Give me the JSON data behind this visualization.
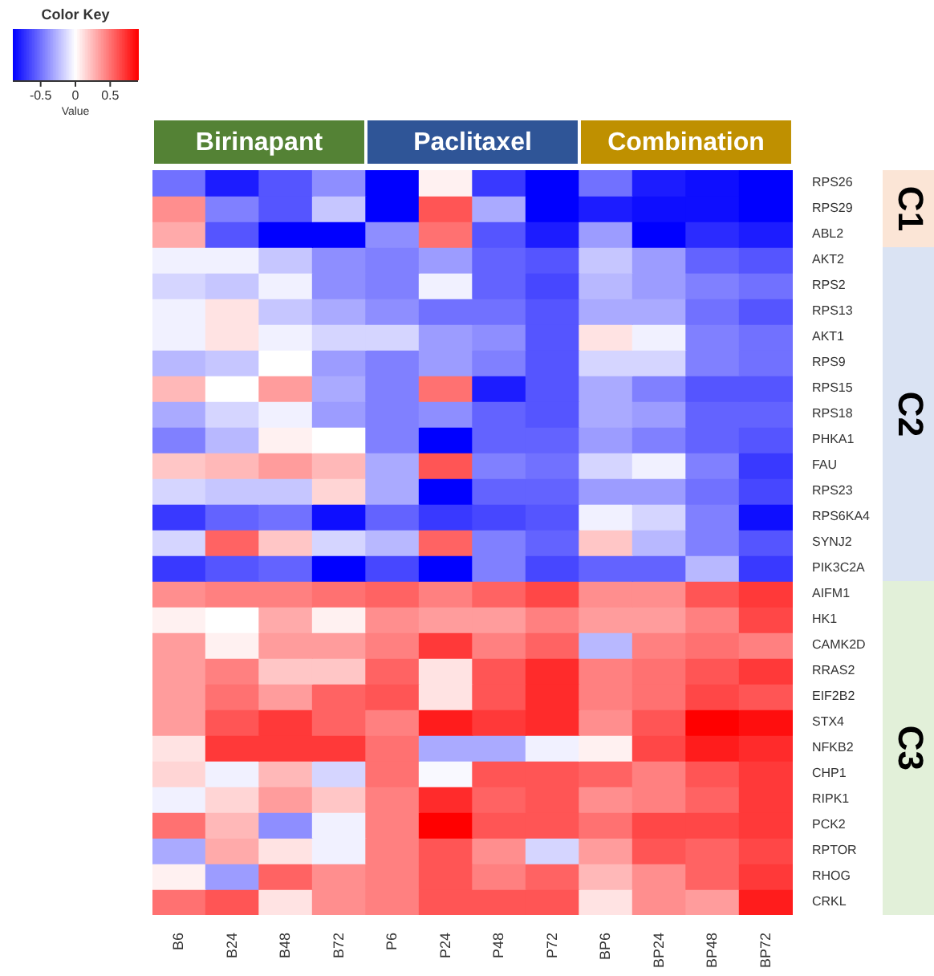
{
  "chart_data": {
    "type": "heatmap",
    "legend_title": "Color Key",
    "clabel": "Value",
    "clim": [
      -0.9,
      0.9
    ],
    "cticks": [
      -0.5,
      0,
      0.5
    ],
    "categories": [
      "B6",
      "B24",
      "B48",
      "B72",
      "P6",
      "P24",
      "P48",
      "P72",
      "BP6",
      "BP24",
      "BP48",
      "BP72"
    ],
    "y_categories": [
      "RPS26",
      "RPS29",
      "ABL2",
      "AKT2",
      "RPS2",
      "RPS13",
      "AKT1",
      "RPS9",
      "RPS15",
      "RPS18",
      "PHKA1",
      "FAU",
      "RPS23",
      "RPS6KA4",
      "SYNJ2",
      "PIK3C2A",
      "AIFM1",
      "HK1",
      "CAMK2D",
      "RRAS2",
      "EIF2B2",
      "STX4",
      "NFKB2",
      "CHP1",
      "RIPK1",
      "PCK2",
      "RPTOR",
      "RHOG",
      "CRKL"
    ],
    "cells": [
      [
        -0.5,
        -0.8,
        -0.6,
        -0.4,
        -0.9,
        0.05,
        -0.7,
        -0.9,
        -0.5,
        -0.8,
        -0.85,
        -0.9
      ],
      [
        0.4,
        -0.45,
        -0.6,
        -0.2,
        -0.9,
        0.6,
        -0.3,
        -0.9,
        -0.8,
        -0.85,
        -0.85,
        -0.9
      ],
      [
        0.3,
        -0.6,
        -0.9,
        -0.9,
        -0.4,
        0.5,
        -0.6,
        -0.8,
        -0.35,
        -0.9,
        -0.75,
        -0.8
      ],
      [
        -0.05,
        -0.05,
        -0.2,
        -0.4,
        -0.45,
        -0.35,
        -0.55,
        -0.6,
        -0.2,
        -0.35,
        -0.55,
        -0.6
      ],
      [
        -0.15,
        -0.2,
        -0.05,
        -0.4,
        -0.45,
        -0.05,
        -0.55,
        -0.65,
        -0.25,
        -0.35,
        -0.45,
        -0.5
      ],
      [
        -0.05,
        0.1,
        -0.2,
        -0.3,
        -0.4,
        -0.5,
        -0.5,
        -0.6,
        -0.3,
        -0.3,
        -0.5,
        -0.6
      ],
      [
        -0.05,
        0.1,
        -0.05,
        -0.15,
        -0.15,
        -0.35,
        -0.4,
        -0.6,
        0.1,
        -0.05,
        -0.45,
        -0.5
      ],
      [
        -0.25,
        -0.2,
        0,
        -0.35,
        -0.45,
        -0.35,
        -0.45,
        -0.6,
        -0.15,
        -0.15,
        -0.45,
        -0.5
      ],
      [
        0.25,
        0,
        0.35,
        -0.3,
        -0.45,
        0.5,
        -0.8,
        -0.6,
        -0.3,
        -0.45,
        -0.6,
        -0.6
      ],
      [
        -0.3,
        -0.15,
        -0.05,
        -0.35,
        -0.45,
        -0.4,
        -0.55,
        -0.6,
        -0.3,
        -0.35,
        -0.55,
        -0.55
      ],
      [
        -0.45,
        -0.25,
        0.05,
        0,
        -0.45,
        -0.9,
        -0.55,
        -0.55,
        -0.35,
        -0.45,
        -0.55,
        -0.6
      ],
      [
        0.2,
        0.25,
        0.35,
        0.25,
        -0.3,
        0.6,
        -0.45,
        -0.5,
        -0.15,
        -0.05,
        -0.45,
        -0.7
      ],
      [
        -0.15,
        -0.2,
        -0.2,
        0.15,
        -0.3,
        -0.9,
        -0.55,
        -0.55,
        -0.35,
        -0.35,
        -0.5,
        -0.65
      ],
      [
        -0.7,
        -0.55,
        -0.5,
        -0.85,
        -0.55,
        -0.7,
        -0.65,
        -0.6,
        -0.05,
        -0.15,
        -0.45,
        -0.85
      ],
      [
        -0.15,
        0.55,
        0.2,
        -0.15,
        -0.25,
        0.55,
        -0.45,
        -0.55,
        0.2,
        -0.25,
        -0.45,
        -0.6
      ],
      [
        -0.7,
        -0.6,
        -0.55,
        -0.9,
        -0.65,
        -0.9,
        -0.45,
        -0.65,
        -0.55,
        -0.55,
        -0.25,
        -0.7
      ],
      [
        0.4,
        0.45,
        0.45,
        0.5,
        0.55,
        0.45,
        0.55,
        0.65,
        0.4,
        0.4,
        0.6,
        0.7
      ],
      [
        0.05,
        0,
        0.3,
        0.05,
        0.4,
        0.35,
        0.35,
        0.45,
        0.35,
        0.35,
        0.45,
        0.65
      ],
      [
        0.35,
        0.05,
        0.35,
        0.35,
        0.45,
        0.7,
        0.45,
        0.55,
        -0.25,
        0.45,
        0.5,
        0.45
      ],
      [
        0.35,
        0.45,
        0.2,
        0.2,
        0.55,
        0.1,
        0.6,
        0.75,
        0.45,
        0.5,
        0.6,
        0.7
      ],
      [
        0.35,
        0.5,
        0.35,
        0.55,
        0.6,
        0.1,
        0.6,
        0.75,
        0.45,
        0.5,
        0.65,
        0.6
      ],
      [
        0.35,
        0.6,
        0.7,
        0.55,
        0.45,
        0.8,
        0.7,
        0.75,
        0.4,
        0.6,
        0.9,
        0.85
      ],
      [
        0.1,
        0.7,
        0.7,
        0.7,
        0.5,
        -0.3,
        -0.3,
        -0.05,
        0.05,
        0.65,
        0.8,
        0.75
      ],
      [
        0.15,
        -0.05,
        0.25,
        -0.15,
        0.5,
        -0.02,
        0.6,
        0.6,
        0.55,
        0.45,
        0.6,
        0.7
      ],
      [
        -0.05,
        0.15,
        0.35,
        0.2,
        0.45,
        0.75,
        0.55,
        0.6,
        0.4,
        0.45,
        0.55,
        0.7
      ],
      [
        0.5,
        0.25,
        -0.4,
        -0.05,
        0.45,
        0.9,
        0.6,
        0.6,
        0.5,
        0.65,
        0.65,
        0.7
      ],
      [
        -0.3,
        0.3,
        0.1,
        -0.05,
        0.45,
        0.6,
        0.4,
        -0.15,
        0.35,
        0.6,
        0.55,
        0.65
      ],
      [
        0.05,
        -0.35,
        0.55,
        0.4,
        0.45,
        0.6,
        0.45,
        0.55,
        0.25,
        0.4,
        0.55,
        0.7
      ],
      [
        0.5,
        0.6,
        0.1,
        0.4,
        0.45,
        0.6,
        0.6,
        0.6,
        0.1,
        0.4,
        0.35,
        0.8
      ]
    ],
    "annotations": [
      "Birinapant",
      "Paclitaxel",
      "Combination",
      "C1",
      "C2",
      "C3"
    ]
  }
}
